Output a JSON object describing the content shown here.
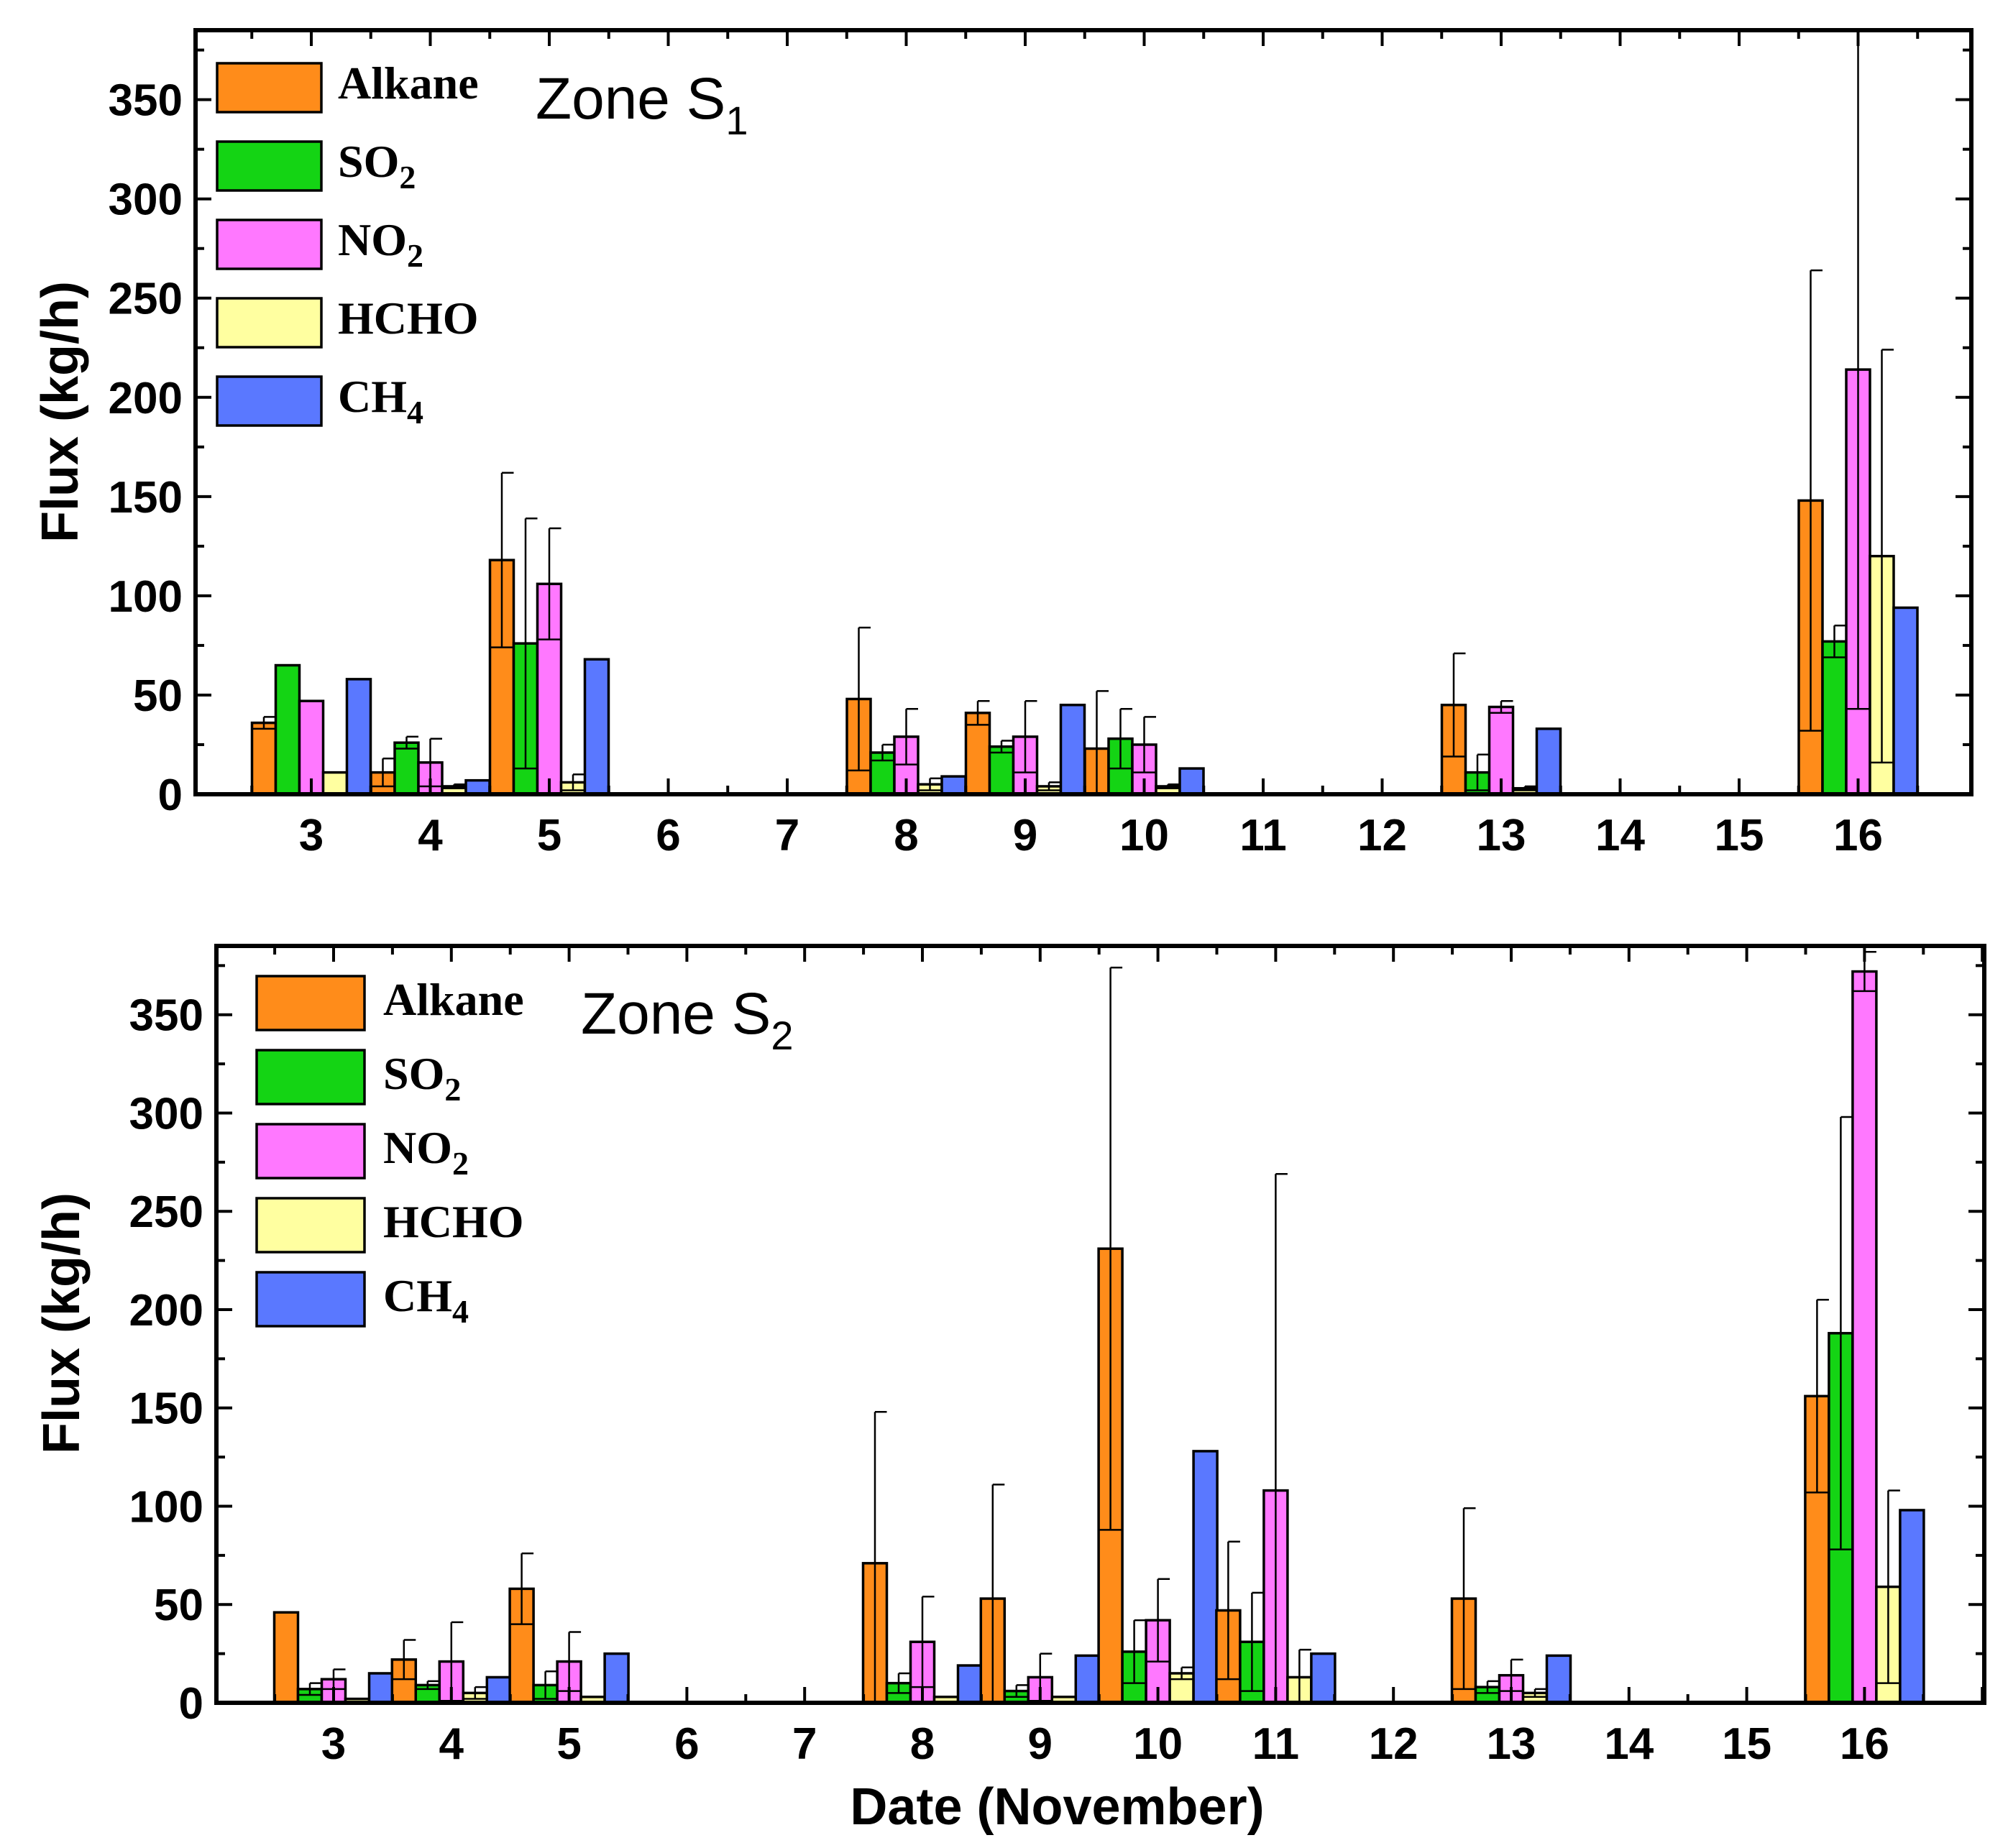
{
  "colors": {
    "Alkane": "#ff8c1a",
    "SO2": "#14d414",
    "NO2": "#ff78ff",
    "HCHO": "#ffffa0",
    "CH4": "#5a78ff"
  },
  "chart_data": [
    {
      "type": "bar",
      "title": "Zone S",
      "title_subscript": "1",
      "xlabel": "",
      "ylabel": "Flux (kg/h)",
      "ylim": [
        0,
        385
      ],
      "yticks": [
        "0",
        "50",
        "100",
        "150",
        "200",
        "250",
        "300",
        "350"
      ],
      "categories": [
        "3",
        "4",
        "5",
        "6",
        "7",
        "8",
        "9",
        "10",
        "11",
        "12",
        "13",
        "14",
        "15",
        "16"
      ],
      "legend": [
        {
          "key": "Alkane",
          "base": "Alkane",
          "sub": ""
        },
        {
          "key": "SO2",
          "base": "SO",
          "sub": "2"
        },
        {
          "key": "NO2",
          "base": "NO",
          "sub": "2"
        },
        {
          "key": "HCHO",
          "base": "HCHO",
          "sub": ""
        },
        {
          "key": "CH4",
          "base": "CH",
          "sub": "4"
        }
      ],
      "series": [
        {
          "name": "Alkane",
          "values": [
            36,
            11,
            118,
            0,
            0,
            48,
            41,
            23,
            0,
            0,
            45,
            0,
            0,
            148
          ],
          "errors": [
            3,
            7,
            44,
            0,
            0,
            36,
            6,
            29,
            0,
            0,
            26,
            0,
            0,
            116
          ]
        },
        {
          "name": "SO2",
          "values": [
            65,
            26,
            76,
            0,
            0,
            21,
            24,
            28,
            0,
            0,
            11,
            0,
            0,
            77
          ],
          "errors": [
            0,
            3,
            63,
            0,
            0,
            4,
            3,
            15,
            0,
            0,
            9,
            0,
            0,
            8
          ]
        },
        {
          "name": "NO2",
          "values": [
            47,
            16,
            106,
            0,
            0,
            29,
            29,
            25,
            0,
            0,
            44,
            0,
            0,
            214
          ],
          "errors": [
            0,
            12,
            28,
            0,
            0,
            14,
            18,
            14,
            0,
            0,
            3,
            0,
            0,
            171
          ]
        },
        {
          "name": "HCHO",
          "values": [
            11,
            4,
            6,
            0,
            0,
            5,
            4,
            4,
            0,
            0,
            3,
            0,
            0,
            120
          ],
          "errors": [
            0,
            1,
            4,
            0,
            0,
            3,
            2,
            1,
            0,
            0,
            1,
            0,
            0,
            104
          ]
        },
        {
          "name": "CH4",
          "values": [
            58,
            7,
            68,
            0,
            0,
            9,
            45,
            13,
            0,
            0,
            33,
            0,
            0,
            94
          ],
          "errors": [
            0,
            0,
            0,
            0,
            0,
            0,
            0,
            0,
            0,
            0,
            0,
            0,
            0,
            0
          ]
        }
      ]
    },
    {
      "type": "bar",
      "title": "Zone S",
      "title_subscript": "2",
      "xlabel": "Date (November)",
      "ylabel": "Flux (kg/h)",
      "ylim": [
        0,
        385
      ],
      "yticks": [
        "0",
        "50",
        "100",
        "150",
        "200",
        "250",
        "300",
        "350"
      ],
      "categories": [
        "3",
        "4",
        "5",
        "6",
        "7",
        "8",
        "9",
        "10",
        "11",
        "12",
        "13",
        "14",
        "15",
        "16"
      ],
      "legend": [
        {
          "key": "Alkane",
          "base": "Alkane",
          "sub": ""
        },
        {
          "key": "SO2",
          "base": "SO",
          "sub": "2"
        },
        {
          "key": "NO2",
          "base": "NO",
          "sub": "2"
        },
        {
          "key": "HCHO",
          "base": "HCHO",
          "sub": ""
        },
        {
          "key": "CH4",
          "base": "CH",
          "sub": "4"
        }
      ],
      "series": [
        {
          "name": "Alkane",
          "values": [
            46,
            22,
            58,
            0,
            0,
            71,
            53,
            231,
            47,
            0,
            53,
            0,
            0,
            156
          ],
          "errors": [
            0,
            10,
            18,
            0,
            0,
            77,
            58,
            143,
            35,
            0,
            46,
            0,
            0,
            49
          ]
        },
        {
          "name": "SO2",
          "values": [
            7,
            9,
            9,
            0,
            0,
            10,
            6,
            26,
            31,
            0,
            8,
            0,
            0,
            188
          ],
          "errors": [
            3,
            2,
            7,
            0,
            0,
            5,
            3,
            16,
            25,
            0,
            3,
            0,
            0,
            110
          ]
        },
        {
          "name": "NO2",
          "values": [
            12,
            21,
            21,
            0,
            0,
            31,
            13,
            42,
            108,
            0,
            14,
            0,
            0,
            372
          ],
          "errors": [
            5,
            20,
            15,
            0,
            0,
            23,
            12,
            21,
            161,
            0,
            8,
            0,
            0,
            10
          ]
        },
        {
          "name": "HCHO",
          "values": [
            2,
            5,
            3,
            0,
            0,
            3,
            3,
            15,
            13,
            0,
            5,
            0,
            0,
            59
          ],
          "errors": [
            0,
            3,
            0,
            0,
            0,
            0,
            0,
            3,
            14,
            0,
            2,
            0,
            0,
            49
          ]
        },
        {
          "name": "CH4",
          "values": [
            15,
            13,
            25,
            0,
            0,
            19,
            24,
            128,
            25,
            0,
            24,
            0,
            0,
            98
          ],
          "errors": [
            0,
            0,
            0,
            0,
            0,
            0,
            0,
            0,
            0,
            0,
            0,
            0,
            0,
            0
          ]
        }
      ]
    }
  ]
}
